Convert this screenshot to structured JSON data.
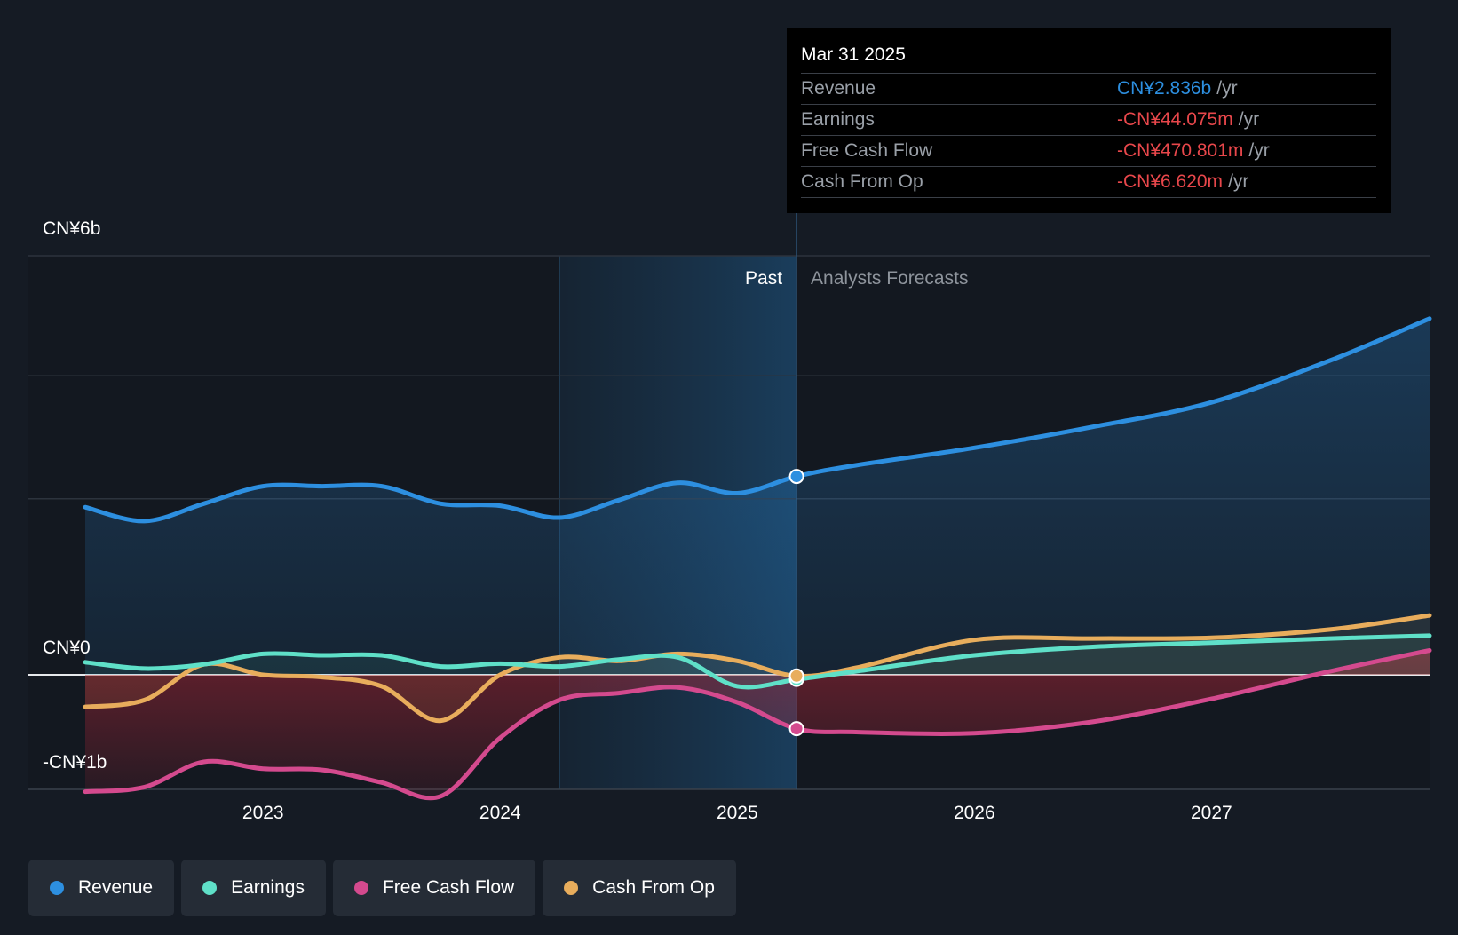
{
  "chart_data": {
    "type": "line",
    "x_unit": "year",
    "y_unit": "CN¥ billions",
    "ylim": [
      -1,
      6
    ],
    "xlim": [
      2022.25,
      2027.92
    ],
    "y_tick_labels": [
      {
        "value": 6,
        "label": "CN¥6b"
      },
      {
        "value": 0,
        "label": "CN¥0"
      },
      {
        "value": -1,
        "label": "-CN¥1b"
      }
    ],
    "x_tick_labels": [
      {
        "value": 2023,
        "label": "2023"
      },
      {
        "value": 2024,
        "label": "2024"
      },
      {
        "value": 2025,
        "label": "2025"
      },
      {
        "value": 2026,
        "label": "2026"
      },
      {
        "value": 2027,
        "label": "2027"
      }
    ],
    "gridlines": [
      6,
      4.28,
      2.52
    ],
    "past_label": "Past",
    "forecast_label": "Analysts Forecasts",
    "split_x": 2025.25,
    "shade_start_x": 2024.25,
    "series": [
      {
        "name": "Revenue",
        "color": "#2d8fe0",
        "x": [
          2022.25,
          2022.5,
          2022.75,
          2023.0,
          2023.25,
          2023.5,
          2023.75,
          2024.0,
          2024.25,
          2024.5,
          2024.75,
          2025.0,
          2025.25,
          2025.5,
          2026.0,
          2026.5,
          2027.0,
          2027.5,
          2027.92
        ],
        "y": [
          2.4,
          2.2,
          2.45,
          2.7,
          2.7,
          2.7,
          2.45,
          2.42,
          2.25,
          2.5,
          2.75,
          2.6,
          2.84,
          3.0,
          3.25,
          3.55,
          3.9,
          4.5,
          5.1
        ]
      },
      {
        "name": "Earnings",
        "color": "#5fe0c8",
        "x": [
          2022.25,
          2022.5,
          2022.75,
          2023.0,
          2023.25,
          2023.5,
          2023.75,
          2024.0,
          2024.25,
          2024.5,
          2024.75,
          2025.0,
          2025.25,
          2025.5,
          2026.0,
          2026.5,
          2027.0,
          2027.5,
          2027.92
        ],
        "y": [
          0.18,
          0.09,
          0.15,
          0.3,
          0.28,
          0.28,
          0.12,
          0.16,
          0.12,
          0.22,
          0.25,
          -0.1,
          -0.04,
          0.05,
          0.28,
          0.4,
          0.46,
          0.52,
          0.56
        ]
      },
      {
        "name": "Free Cash Flow",
        "color": "#d44a8e",
        "x": [
          2022.25,
          2022.5,
          2022.75,
          2023.0,
          2023.25,
          2023.5,
          2023.75,
          2024.0,
          2024.25,
          2024.5,
          2024.75,
          2025.0,
          2025.25,
          2025.5,
          2026.0,
          2026.5,
          2027.0,
          2027.5,
          2027.92
        ],
        "y": [
          -1.02,
          -0.98,
          -0.76,
          -0.82,
          -0.83,
          -0.94,
          -1.06,
          -0.55,
          -0.22,
          -0.16,
          -0.11,
          -0.24,
          -0.47,
          -0.5,
          -0.51,
          -0.41,
          -0.21,
          0.05,
          0.35
        ]
      },
      {
        "name": "Cash From Op",
        "color": "#e8ad5c",
        "x": [
          2022.25,
          2022.5,
          2022.75,
          2023.0,
          2023.25,
          2023.5,
          2023.75,
          2024.0,
          2024.25,
          2024.5,
          2024.75,
          2025.0,
          2025.25,
          2025.5,
          2026.0,
          2026.5,
          2027.0,
          2027.5,
          2027.92
        ],
        "y": [
          -0.28,
          -0.22,
          0.15,
          0.0,
          -0.02,
          -0.1,
          -0.4,
          0.0,
          0.25,
          0.2,
          0.3,
          0.2,
          -0.01,
          0.1,
          0.5,
          0.52,
          0.53,
          0.65,
          0.85
        ]
      }
    ]
  },
  "tooltip": {
    "date": "Mar 31 2025",
    "rows": [
      {
        "label": "Revenue",
        "value": "CN¥2.836b",
        "unit": "/yr",
        "color": "#2d8fe0"
      },
      {
        "label": "Earnings",
        "value": "-CN¥44.075m",
        "unit": "/yr",
        "color": "#e8474b"
      },
      {
        "label": "Free Cash Flow",
        "value": "-CN¥470.801m",
        "unit": "/yr",
        "color": "#e8474b"
      },
      {
        "label": "Cash From Op",
        "value": "-CN¥6.620m",
        "unit": "/yr",
        "color": "#e8474b"
      }
    ]
  },
  "legend": [
    {
      "label": "Revenue",
      "color": "#2d8fe0"
    },
    {
      "label": "Earnings",
      "color": "#5fe0c8"
    },
    {
      "label": "Free Cash Flow",
      "color": "#d44a8e"
    },
    {
      "label": "Cash From Op",
      "color": "#e8ad5c"
    }
  ]
}
